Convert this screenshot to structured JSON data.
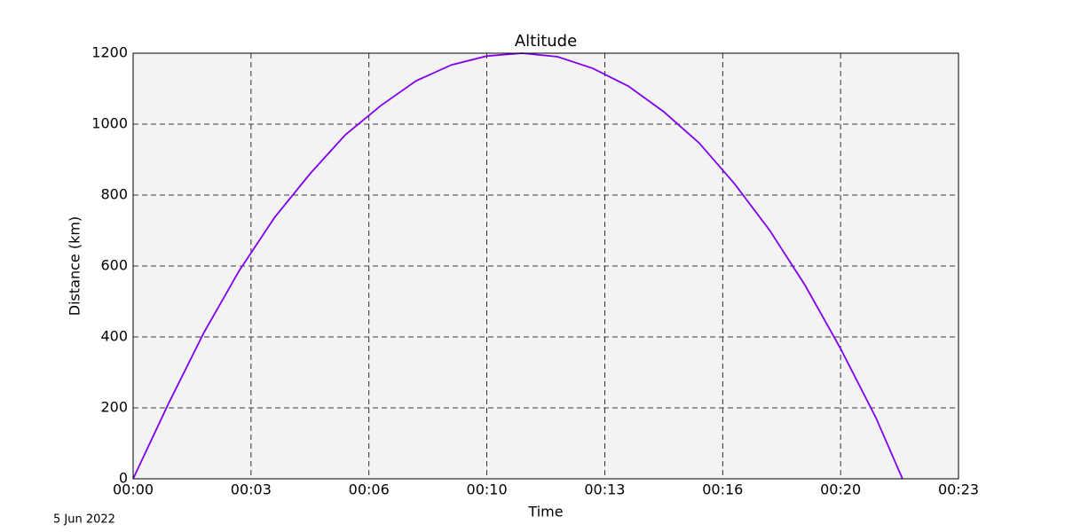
{
  "chart_data": {
    "type": "line",
    "title": "Altitude",
    "x_label": "Time",
    "y_label": "Distance (km)",
    "annotation": "5 Jun 2022",
    "x": [
      0,
      60,
      120,
      180,
      240,
      300,
      360,
      420,
      480,
      540,
      600,
      660,
      720,
      780,
      840,
      900,
      960,
      1020,
      1080,
      1140,
      1200,
      1260,
      1305
    ],
    "series": [
      {
        "name": "Altitude",
        "color": "#8000f0",
        "values": [
          0,
          212,
          412,
          587,
          737,
          860,
          970,
          1052,
          1122,
          1167,
          1192,
          1200,
          1190,
          1157,
          1107,
          1035,
          947,
          832,
          700,
          545,
          367,
          172,
          0
        ]
      }
    ],
    "xlim": [
      0,
      1400
    ],
    "xticks": [
      {
        "value": 0,
        "label": "00:00"
      },
      {
        "value": 200,
        "label": "00:03"
      },
      {
        "value": 400,
        "label": "00:06"
      },
      {
        "value": 600,
        "label": "00:10"
      },
      {
        "value": 800,
        "label": "00:13"
      },
      {
        "value": 1000,
        "label": "00:16"
      },
      {
        "value": 1200,
        "label": "00:20"
      },
      {
        "value": 1400,
        "label": "00:23"
      }
    ],
    "ylim": [
      0,
      1200
    ],
    "yticks": [
      0,
      200,
      400,
      600,
      800,
      1000,
      1200
    ],
    "grid": true
  }
}
